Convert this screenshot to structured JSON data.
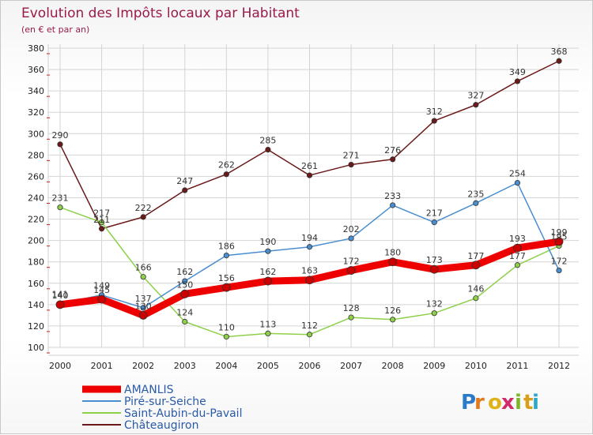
{
  "title": "Evolution des Impôts locaux par Habitant",
  "subtitle": "(en € et par an)",
  "logo": [
    "P",
    "r",
    "o",
    "x",
    "i",
    "t",
    "i"
  ],
  "chart_data": {
    "type": "line",
    "x": [
      "2000",
      "2001",
      "2002",
      "2003",
      "2004",
      "2005",
      "2006",
      "2007",
      "2008",
      "2009",
      "2010",
      "2011",
      "2012"
    ],
    "ylim": [
      100,
      380
    ],
    "yticks": [
      100,
      120,
      140,
      160,
      180,
      200,
      220,
      240,
      260,
      280,
      300,
      320,
      340,
      360,
      380
    ],
    "grid": true,
    "legend_position": "bottom-left",
    "series": [
      {
        "name": "AMANLIS",
        "color": "#ee0000",
        "values": [
          140,
          145,
          130,
          150,
          156,
          162,
          163,
          172,
          180,
          173,
          177,
          193,
          199
        ]
      },
      {
        "name": "Piré-sur-Seiche",
        "color": "#4a8ed0",
        "values": [
          141,
          149,
          137,
          162,
          186,
          190,
          194,
          202,
          233,
          217,
          235,
          254,
          172
        ]
      },
      {
        "name": "Saint-Aubin-du-Pavail",
        "color": "#8ed04a",
        "values": [
          231,
          217,
          166,
          124,
          110,
          113,
          112,
          128,
          126,
          132,
          146,
          177,
          195
        ]
      },
      {
        "name": "Châteaugiron",
        "color": "#6a1a1a",
        "values": [
          290,
          211,
          222,
          247,
          262,
          285,
          261,
          271,
          276,
          312,
          327,
          349,
          368
        ]
      }
    ]
  }
}
